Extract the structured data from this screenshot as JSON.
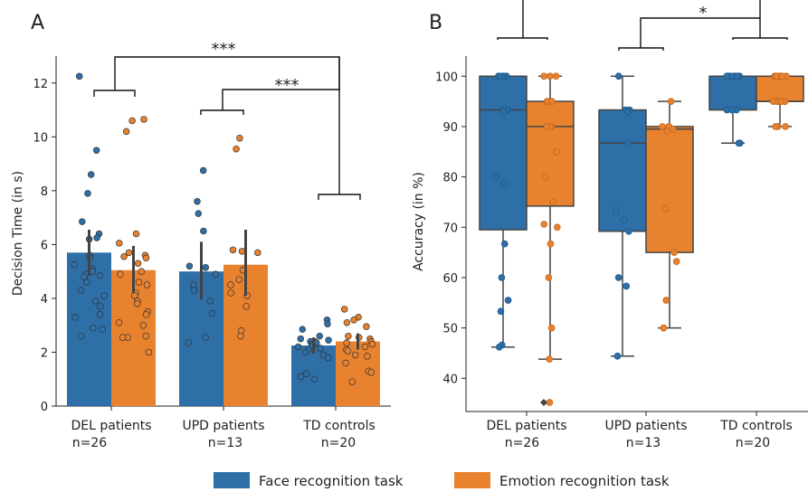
{
  "panels": {
    "a": "A",
    "b": "B"
  },
  "groups": [
    {
      "label": "DEL patients",
      "n": "n=26"
    },
    {
      "label": "UPD patients",
      "n": "n=13"
    },
    {
      "label": "TD controls",
      "n": "n=20"
    }
  ],
  "legend": [
    {
      "label": "Face recognition task",
      "color": "#2e6fa7"
    },
    {
      "label": "Emotion recognition task",
      "color": "#e8822f"
    }
  ],
  "significance": {
    "a_del_td": "***",
    "a_upd_td": "***",
    "b_upd_td": "*"
  },
  "chart_data": [
    {
      "type": "bar",
      "panel": "A",
      "categories": [
        "DEL patients",
        "UPD patients",
        "TD controls"
      ],
      "ylabel": "Decision Time (in s)",
      "ylim": [
        0,
        13
      ],
      "yticks": [
        0,
        2,
        4,
        6,
        8,
        10,
        12
      ],
      "series": [
        {
          "name": "Face recognition task",
          "values": [
            5.7,
            5.0,
            2.25
          ],
          "ci": [
            [
              4.85,
              6.55
            ],
            [
              3.95,
              6.1
            ],
            [
              1.95,
              2.55
            ]
          ],
          "points": [
            [
              12.25,
              9.5,
              8.6,
              7.9,
              6.85,
              6.4,
              6.25,
              6.2,
              5.6,
              5.5,
              5.25,
              5.1,
              5.0,
              4.9,
              4.85,
              4.8,
              4.6,
              4.3,
              4.1,
              3.9,
              3.7,
              3.4,
              3.3,
              2.9,
              2.85,
              2.6
            ],
            [
              8.75,
              7.6,
              7.15,
              6.5,
              5.2,
              5.15,
              4.9,
              4.5,
              4.3,
              3.9,
              3.45,
              2.55,
              2.35
            ],
            [
              3.2,
              3.05,
              2.85,
              2.6,
              2.5,
              2.45,
              2.4,
              2.4,
              2.35,
              2.3,
              2.25,
              2.2,
              2.15,
              2.1,
              2.0,
              1.9,
              1.8,
              1.2,
              1.1,
              1.0
            ]
          ]
        },
        {
          "name": "Emotion recognition task",
          "values": [
            5.05,
            5.25,
            2.4
          ],
          "ci": [
            [
              4.2,
              5.95
            ],
            [
              4.1,
              6.55
            ],
            [
              2.1,
              2.7
            ]
          ],
          "points": [
            [
              10.65,
              10.6,
              10.2,
              6.4,
              6.05,
              5.7,
              5.6,
              5.55,
              5.5,
              5.3,
              5.0,
              4.9,
              4.6,
              4.5,
              4.2,
              4.1,
              3.9,
              3.8,
              3.5,
              3.4,
              3.1,
              3.0,
              2.6,
              2.55,
              2.55,
              2.0
            ],
            [
              9.95,
              9.55,
              5.8,
              5.75,
              5.7,
              5.05,
              4.7,
              4.5,
              4.2,
              4.1,
              3.7,
              2.8,
              2.6
            ],
            [
              3.6,
              3.3,
              3.2,
              3.1,
              2.95,
              2.6,
              2.55,
              2.5,
              2.4,
              2.35,
              2.3,
              2.2,
              2.1,
              2.05,
              1.9,
              1.85,
              1.6,
              1.3,
              1.25,
              0.9
            ]
          ]
        }
      ]
    },
    {
      "type": "box",
      "panel": "B",
      "categories": [
        "DEL patients",
        "UPD patients",
        "TD controls"
      ],
      "ylabel": "Accuracy (in %)",
      "ylim": [
        33.4,
        104
      ],
      "yticks": [
        40,
        50,
        60,
        70,
        80,
        90,
        100
      ],
      "series": [
        {
          "name": "Face recognition task",
          "boxes": [
            {
              "q1": 69.5,
              "median": 93.3,
              "q3": 100,
              "whisker_low": 46.2,
              "whisker_high": 100,
              "outliers": []
            },
            {
              "q1": 69.2,
              "median": 86.7,
              "q3": 93.3,
              "whisker_low": 44.4,
              "whisker_high": 100,
              "outliers": []
            },
            {
              "q1": 93.3,
              "median": 100,
              "q3": 100,
              "whisker_low": 86.7,
              "whisker_high": 100,
              "outliers": []
            }
          ],
          "points": [
            [
              100,
              100,
              100,
              100,
              100,
              93.3,
              93.3,
              93.3,
              93.3,
              92.9,
              80,
              78.6,
              66.7,
              60,
              55.5,
              53.3,
              46.6,
              46.2
            ],
            [
              100,
              93.3,
              93.3,
              92.9,
              86.7,
              73.3,
              71.4,
              69.2,
              60,
              58.3,
              44.4
            ],
            [
              100,
              100,
              100,
              100,
              100,
              100,
              100,
              100,
              100,
              100,
              100,
              100,
              93.3,
              93.3,
              93.3,
              86.7,
              86.7
            ]
          ]
        },
        {
          "name": "Emotion recognition task",
          "boxes": [
            {
              "q1": 74.2,
              "median": 90,
              "q3": 95,
              "whisker_low": 43.8,
              "whisker_high": 100,
              "outliers": [
                35.2
              ]
            },
            {
              "q1": 65,
              "median": 89.5,
              "q3": 90,
              "whisker_low": 50,
              "whisker_high": 95,
              "outliers": []
            },
            {
              "q1": 95,
              "median": 95,
              "q3": 100,
              "whisker_low": 90,
              "whisker_high": 100,
              "outliers": []
            }
          ],
          "points": [
            [
              100,
              100,
              100,
              95,
              95,
              95,
              90,
              90,
              90,
              85,
              85,
              80,
              75,
              70.6,
              70,
              66.7,
              60,
              50,
              43.8,
              35.2
            ],
            [
              95,
              90,
              90,
              90,
              89.5,
              89,
              73.7,
              65,
              63.2,
              55.5,
              50
            ],
            [
              100,
              100,
              100,
              100,
              100,
              100,
              100,
              100,
              95,
              95,
              95,
              95,
              95,
              95,
              95,
              90,
              90,
              90
            ]
          ]
        }
      ]
    }
  ]
}
